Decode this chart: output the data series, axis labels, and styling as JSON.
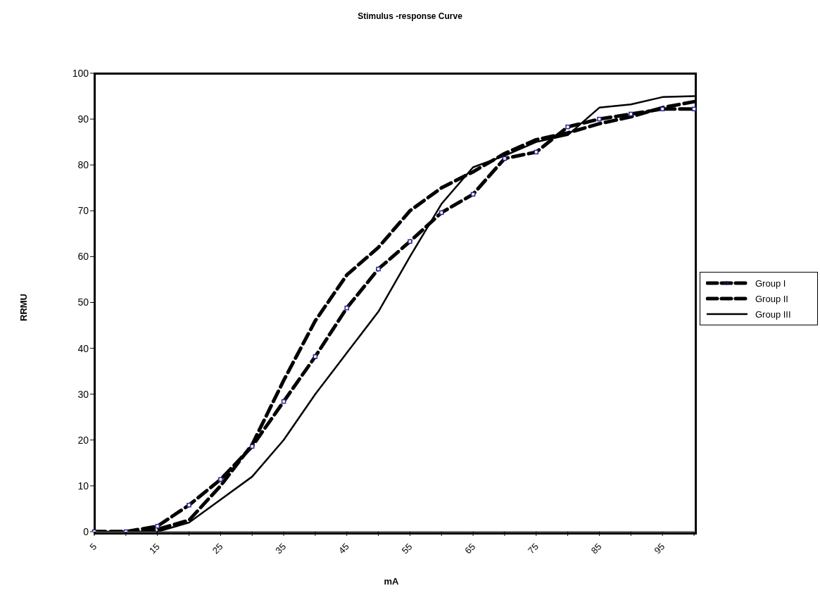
{
  "chart_data": {
    "type": "line",
    "title": "Stimulus -response Curve",
    "xlabel": "mA",
    "ylabel": "RRMU",
    "categories": [
      "5",
      null,
      "15",
      null,
      "25",
      null,
      "35",
      null,
      "45",
      null,
      "55",
      null,
      "65",
      null,
      "75",
      null,
      "85",
      null,
      "95",
      null
    ],
    "series": [
      {
        "name": "Group I",
        "color": "#000000",
        "line_style": "dashed",
        "marker": "square",
        "values": [
          0,
          0,
          1.2,
          5.8,
          11.4,
          18.6,
          28.4,
          38.2,
          48.8,
          57.3,
          63.3,
          69.6,
          73.6,
          81.4,
          82.8,
          88.3,
          90.0,
          91.1,
          92.2,
          92.2
        ]
      },
      {
        "name": "Group II",
        "color": "#000000",
        "line_style": "dashed",
        "values": [
          0,
          0,
          0.5,
          2.5,
          10,
          19,
          33,
          46,
          56,
          62,
          70,
          75,
          78.5,
          82.5,
          85.5,
          87,
          89,
          90.5,
          92.5,
          93.8
        ]
      },
      {
        "name": "Group III",
        "color": "#000000",
        "line_style": "solid",
        "values": [
          0,
          0,
          0,
          2,
          7,
          12,
          20,
          30,
          39,
          48,
          60,
          71.5,
          79.5,
          82,
          85,
          86.5,
          92.5,
          93.2,
          94.8,
          95
        ]
      }
    ],
    "ylim": [
      0,
      100
    ],
    "yticks": [
      0,
      10,
      20,
      30,
      40,
      50,
      60,
      70,
      80,
      90,
      100
    ],
    "grid": false,
    "legend": "right"
  }
}
